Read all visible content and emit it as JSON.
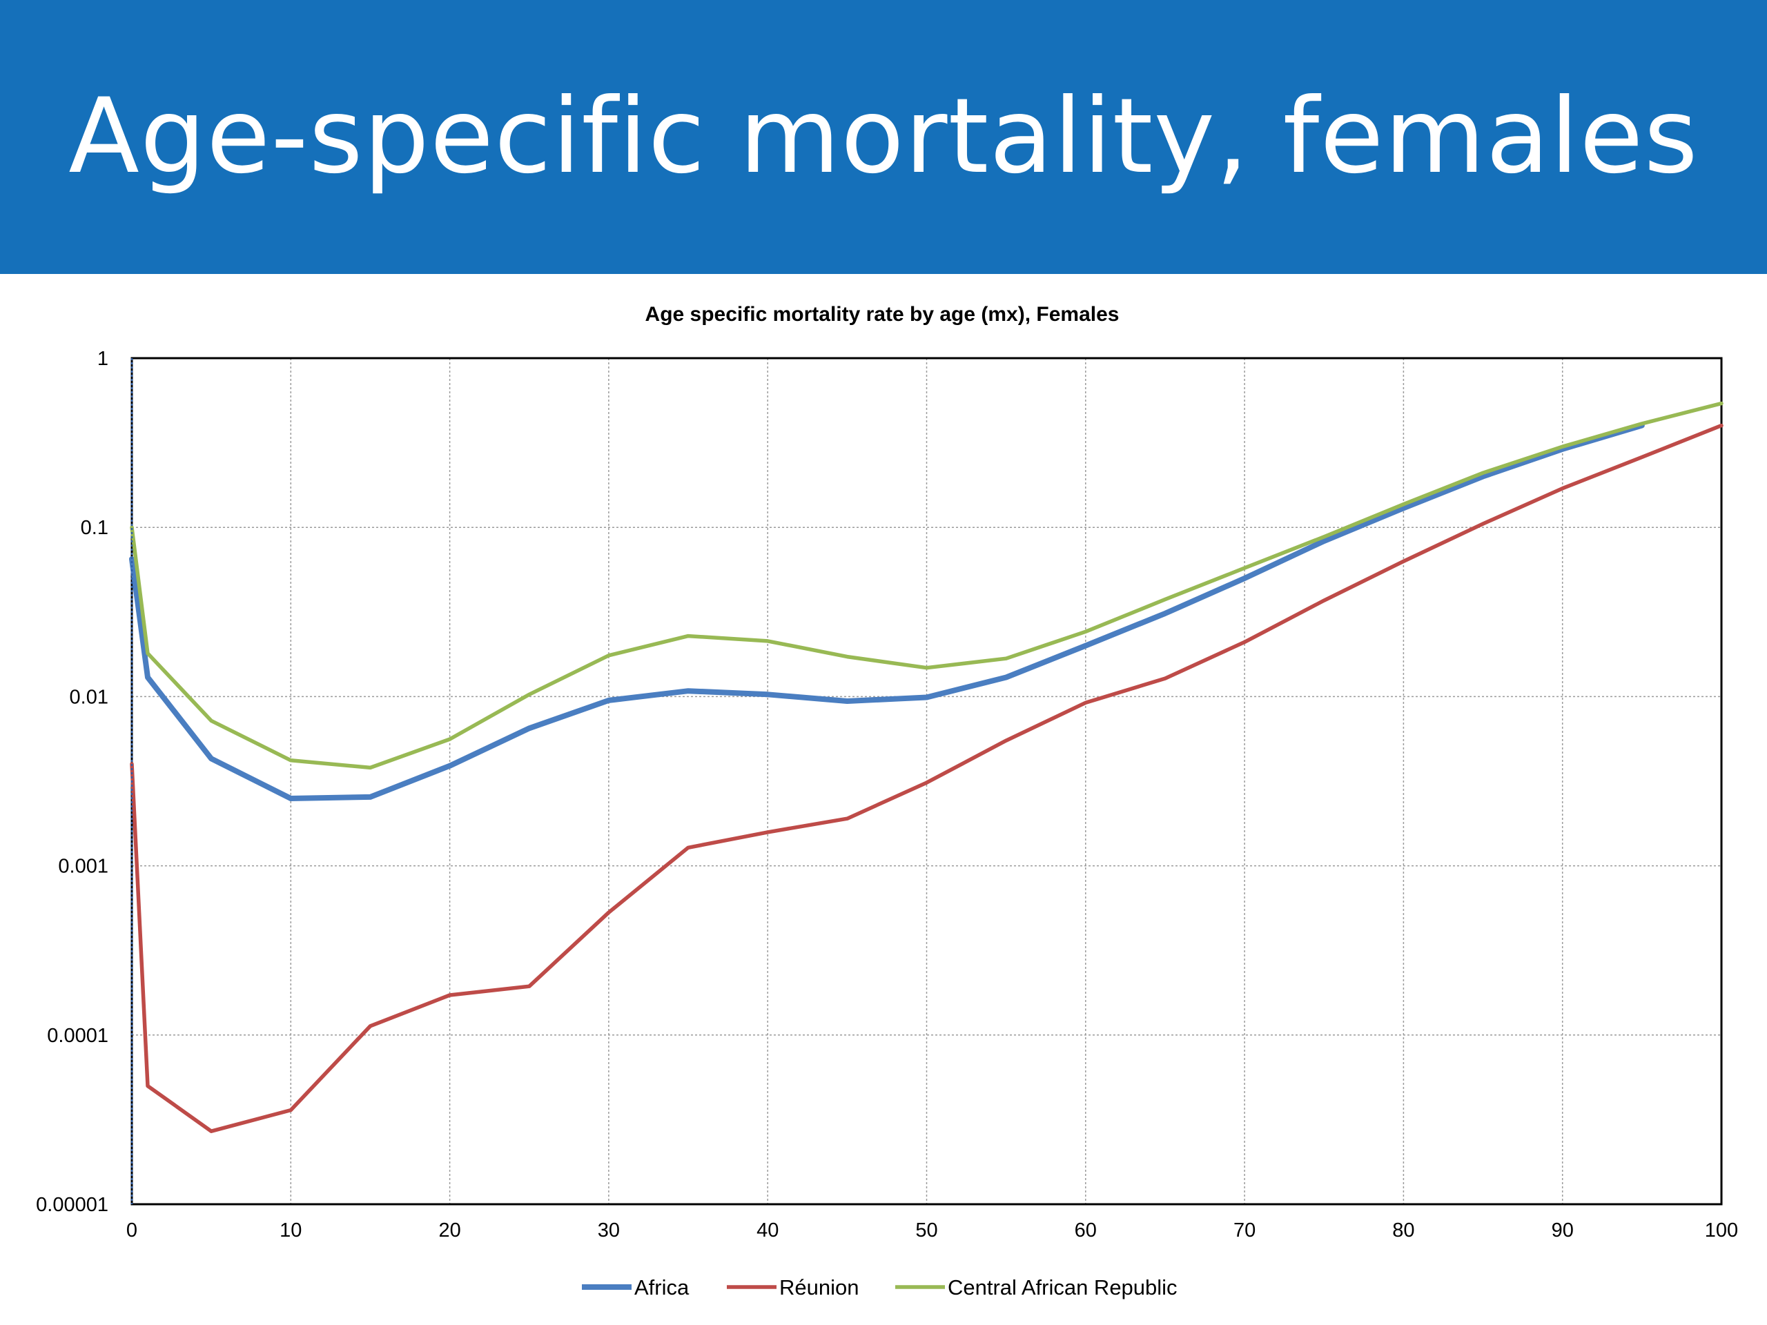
{
  "slide": {
    "title": "Age-specific mortality, females",
    "banner_color": "#1570BA"
  },
  "chart_data": {
    "type": "line",
    "title": "Age specific mortality rate by age (mx), Females",
    "xlabel": "",
    "ylabel": "",
    "y_scale": "log",
    "xlim": [
      0,
      100
    ],
    "ylim": [
      1e-05,
      1
    ],
    "x_ticks": [
      "0",
      "10",
      "20",
      "30",
      "40",
      "50",
      "60",
      "70",
      "80",
      "90",
      "100"
    ],
    "y_ticks": [
      "1",
      "0.1",
      "0.01",
      "0.001",
      "0.0001",
      "0.00001"
    ],
    "grid": true,
    "legend_position": "bottom",
    "series": [
      {
        "name": "Africa",
        "color": "#4A7EC1",
        "x": [
          0,
          1,
          5,
          10,
          15,
          20,
          25,
          30,
          35,
          40,
          45,
          50,
          55,
          60,
          65,
          70,
          75,
          80,
          85,
          90,
          95
        ],
        "y": [
          0.065,
          0.013,
          0.0043,
          0.0025,
          0.00255,
          0.0039,
          0.0065,
          0.0095,
          0.0108,
          0.0103,
          0.0094,
          0.0099,
          0.013,
          0.02,
          0.031,
          0.05,
          0.083,
          0.13,
          0.2,
          0.29,
          0.4
        ]
      },
      {
        "name": "Réunion",
        "color": "#BE4B48",
        "x": [
          0,
          1,
          5,
          10,
          15,
          20,
          25,
          30,
          35,
          40,
          45,
          50,
          55,
          60,
          65,
          70,
          75,
          80,
          85,
          90,
          95,
          100
        ],
        "y": [
          0.004,
          5e-05,
          2.7e-05,
          3.6e-05,
          0.000113,
          0.000172,
          0.000194,
          0.00053,
          0.00128,
          0.00158,
          0.0019,
          0.0031,
          0.0055,
          0.0092,
          0.0128,
          0.021,
          0.037,
          0.063,
          0.105,
          0.17,
          0.26,
          0.4
        ]
      },
      {
        "name": "Central African Republic",
        "color": "#98B954",
        "x": [
          0,
          1,
          5,
          10,
          15,
          20,
          25,
          30,
          35,
          40,
          45,
          50,
          55,
          60,
          65,
          70,
          75,
          80,
          85,
          90,
          95,
          100
        ],
        "y": [
          0.1,
          0.018,
          0.0072,
          0.0042,
          0.0038,
          0.0056,
          0.0103,
          0.0175,
          0.0228,
          0.0213,
          0.0172,
          0.0148,
          0.0168,
          0.0242,
          0.0375,
          0.0575,
          0.088,
          0.137,
          0.21,
          0.3,
          0.41,
          0.54
        ]
      }
    ]
  }
}
